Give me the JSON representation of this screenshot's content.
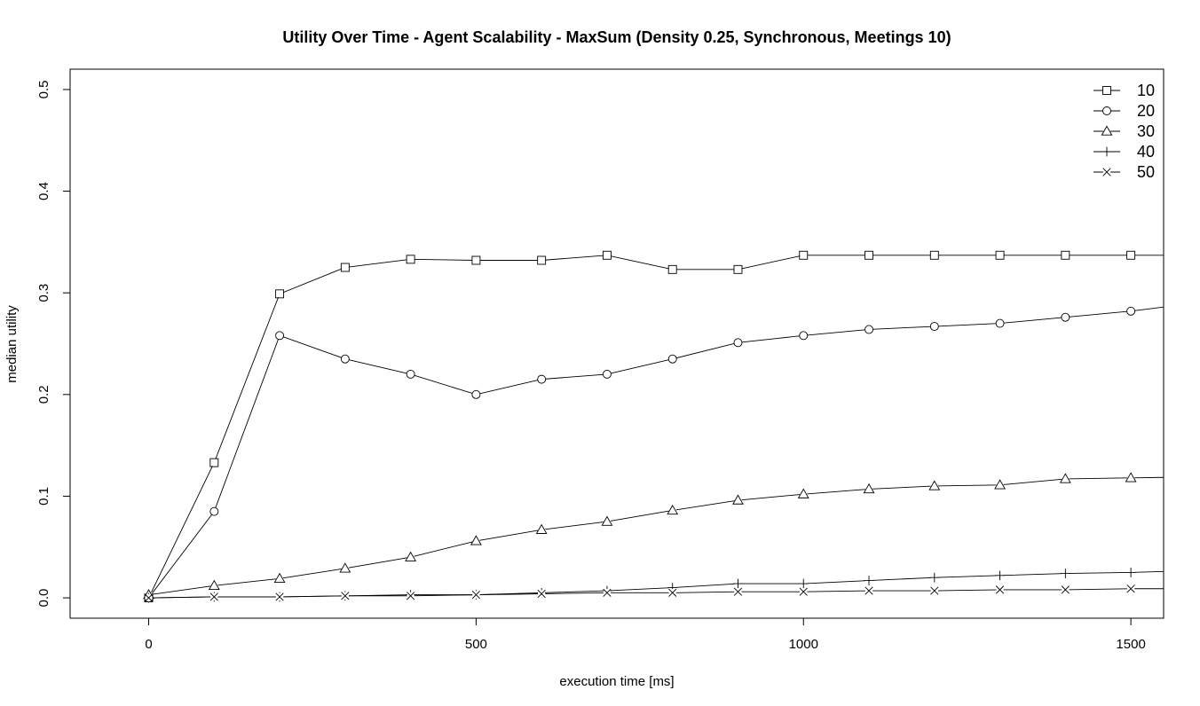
{
  "chart_data": {
    "type": "line",
    "title": "Utility Over Time - Agent Scalability - MaxSum (Density 0.25, Synchronous, Meetings 10)",
    "xlabel": "execution time [ms]",
    "ylabel": "median utility",
    "xlim": [
      -120,
      1550
    ],
    "ylim": [
      -0.02,
      0.52
    ],
    "xticks": [
      0,
      500,
      1000,
      1500
    ],
    "yticks": [
      0.0,
      0.1,
      0.2,
      0.3,
      0.4,
      0.5
    ],
    "xtick_labels": [
      "0",
      "500",
      "1000",
      "1500"
    ],
    "ytick_labels": [
      "0.0",
      "0.1",
      "0.2",
      "0.3",
      "0.4",
      "0.5"
    ],
    "grid": false,
    "legend_position": "top-right",
    "x": [
      0,
      100,
      200,
      300,
      400,
      500,
      600,
      700,
      800,
      900,
      1000,
      1100,
      1200,
      1300,
      1400,
      1500,
      1600
    ],
    "series": [
      {
        "name": "10",
        "marker": "square",
        "values": [
          0.0,
          0.133,
          0.299,
          0.325,
          0.333,
          0.332,
          0.332,
          0.337,
          0.323,
          0.323,
          0.337,
          0.337,
          0.337,
          0.337,
          0.337,
          0.337,
          0.337
        ]
      },
      {
        "name": "20",
        "marker": "circle",
        "values": [
          0.0,
          0.085,
          0.258,
          0.235,
          0.22,
          0.2,
          0.215,
          0.22,
          0.235,
          0.251,
          0.258,
          0.264,
          0.267,
          0.27,
          0.276,
          0.282,
          0.29
        ]
      },
      {
        "name": "30",
        "marker": "triangle",
        "values": [
          0.003,
          0.012,
          0.019,
          0.029,
          0.04,
          0.056,
          0.067,
          0.075,
          0.086,
          0.096,
          0.102,
          0.107,
          0.11,
          0.111,
          0.117,
          0.118,
          0.119
        ]
      },
      {
        "name": "40",
        "marker": "plus",
        "values": [
          0.0,
          0.001,
          0.001,
          0.002,
          0.003,
          0.003,
          0.005,
          0.007,
          0.01,
          0.014,
          0.014,
          0.017,
          0.02,
          0.022,
          0.024,
          0.025,
          0.027
        ]
      },
      {
        "name": "50",
        "marker": "cross",
        "values": [
          0.0,
          0.001,
          0.001,
          0.002,
          0.002,
          0.003,
          0.004,
          0.005,
          0.005,
          0.006,
          0.006,
          0.007,
          0.007,
          0.008,
          0.008,
          0.009,
          0.009
        ]
      }
    ]
  }
}
